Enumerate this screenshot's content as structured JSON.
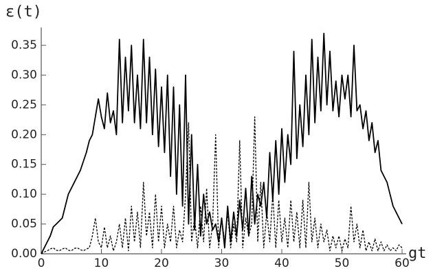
{
  "chart_data": {
    "type": "line",
    "xlabel": "gt",
    "ylabel": "ε(t)",
    "x": [
      0,
      0.5,
      1,
      1.5,
      2,
      2.5,
      3,
      3.5,
      4,
      4.5,
      5,
      5.5,
      6,
      6.5,
      7,
      7.5,
      8,
      8.5,
      9,
      9.5,
      10,
      10.5,
      11,
      11.5,
      12,
      12.5,
      13,
      13.5,
      14,
      14.5,
      15,
      15.5,
      16,
      16.5,
      17,
      17.5,
      18,
      18.5,
      19,
      19.5,
      20,
      20.5,
      21,
      21.5,
      22,
      22.5,
      23,
      23.5,
      24,
      24.5,
      25,
      25.5,
      26,
      26.5,
      27,
      27.5,
      28,
      28.5,
      29,
      29.5,
      30,
      30.5,
      31,
      31.5,
      32,
      32.5,
      33,
      33.5,
      34,
      34.5,
      35,
      35.5,
      36,
      36.5,
      37,
      37.5,
      38,
      38.5,
      39,
      39.5,
      40,
      40.5,
      41,
      41.5,
      42,
      42.5,
      43,
      43.5,
      44,
      44.5,
      45,
      45.5,
      46,
      46.5,
      47,
      47.5,
      48,
      48.5,
      49,
      49.5,
      50,
      50.5,
      51,
      51.5,
      52,
      52.5,
      53,
      53.5,
      54,
      54.5,
      55,
      55.5,
      56,
      56.5,
      57,
      57.5,
      58,
      58.5,
      59,
      59.5,
      60
    ],
    "series": [
      {
        "color": "#000000",
        "dashed": false,
        "values": [
          0,
          0.01,
          0.02,
          0.03,
          0.045,
          0.05,
          0.055,
          0.06,
          0.08,
          0.1,
          0.11,
          0.12,
          0.13,
          0.14,
          0.155,
          0.17,
          0.19,
          0.2,
          0.23,
          0.26,
          0.23,
          0.21,
          0.27,
          0.22,
          0.24,
          0.2,
          0.36,
          0.22,
          0.33,
          0.24,
          0.35,
          0.22,
          0.3,
          0.21,
          0.36,
          0.22,
          0.33,
          0.2,
          0.31,
          0.18,
          0.28,
          0.17,
          0.3,
          0.13,
          0.28,
          0.1,
          0.25,
          0.08,
          0.3,
          0.05,
          0.2,
          0.04,
          0.15,
          0.03,
          0.1,
          0.05,
          0.07,
          0.04,
          0.05,
          0.02,
          0.06,
          0.01,
          0.08,
          0.02,
          0.07,
          0.03,
          0.09,
          0.04,
          0.11,
          0.03,
          0.13,
          0.05,
          0.1,
          0.08,
          0.12,
          0.06,
          0.17,
          0.09,
          0.19,
          0.1,
          0.21,
          0.12,
          0.2,
          0.15,
          0.34,
          0.16,
          0.25,
          0.18,
          0.3,
          0.2,
          0.36,
          0.22,
          0.33,
          0.24,
          0.37,
          0.25,
          0.34,
          0.24,
          0.29,
          0.23,
          0.3,
          0.26,
          0.3,
          0.23,
          0.35,
          0.24,
          0.25,
          0.21,
          0.24,
          0.19,
          0.22,
          0.17,
          0.19,
          0.14,
          0.13,
          0.12,
          0.1,
          0.08,
          0.07,
          0.06,
          0.05
        ]
      },
      {
        "color": "#000000",
        "dashed": true,
        "values": [
          0,
          0.003,
          0.005,
          0.008,
          0.01,
          0.006,
          0.005,
          0.008,
          0.01,
          0.006,
          0.005,
          0.009,
          0.01,
          0.007,
          0.005,
          0.008,
          0.01,
          0.03,
          0.06,
          0.02,
          0.01,
          0.045,
          0.01,
          0.03,
          0.005,
          0.02,
          0.05,
          0.01,
          0.06,
          0.005,
          0.08,
          0.02,
          0.07,
          0.01,
          0.12,
          0.03,
          0.07,
          0.01,
          0.1,
          0.02,
          0.08,
          0.01,
          0.05,
          0.02,
          0.08,
          0.01,
          0.04,
          0.02,
          0.1,
          0.22,
          0.02,
          0.06,
          0.01,
          0.08,
          0.02,
          0.11,
          0.01,
          0.05,
          0.2,
          0.01,
          0.06,
          0.02,
          0.07,
          0.01,
          0.05,
          0.02,
          0.19,
          0.01,
          0.06,
          0.03,
          0.05,
          0.23,
          0.02,
          0.12,
          0.01,
          0.07,
          0.02,
          0.1,
          0.01,
          0.09,
          0.02,
          0.06,
          0.01,
          0.09,
          0.02,
          0.07,
          0.01,
          0.09,
          0.01,
          0.12,
          0.02,
          0.06,
          0.01,
          0.05,
          0.02,
          0.04,
          0.005,
          0.03,
          0.01,
          0.03,
          0.005,
          0.025,
          0.01,
          0.08,
          0.02,
          0.05,
          0.01,
          0.04,
          0.005,
          0.02,
          0.005,
          0.025,
          0.005,
          0.02,
          0.005,
          0.015,
          0.005,
          0.01,
          0.005,
          0.015,
          0.01
        ]
      }
    ],
    "xlim": [
      0,
      60
    ],
    "ylim": [
      0,
      0.38
    ],
    "xticks": [
      0,
      10,
      20,
      30,
      40,
      50,
      60
    ],
    "yticks": [
      {
        "value": 0,
        "label": "0.00"
      },
      {
        "value": 0.05,
        "label": "0.05"
      },
      {
        "value": 0.1,
        "label": "0.10"
      },
      {
        "value": 0.15,
        "label": "0.15"
      },
      {
        "value": 0.2,
        "label": "0.20"
      },
      {
        "value": 0.25,
        "label": "0.25"
      },
      {
        "value": 0.3,
        "label": "0.30"
      },
      {
        "value": 0.35,
        "label": "0.35"
      }
    ]
  }
}
